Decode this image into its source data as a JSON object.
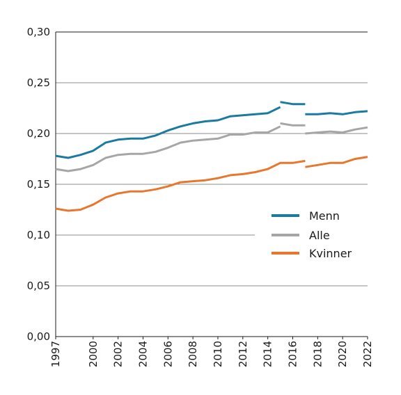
{
  "chart_data": {
    "type": "line",
    "title": "",
    "xlabel": "",
    "ylabel": "",
    "ylim": [
      0,
      0.3
    ],
    "xlim": [
      1997,
      2022
    ],
    "grid": "horizontal",
    "legend_position": "right",
    "y_ticks": [
      "0,00",
      "0,05",
      "0,10",
      "0,15",
      "0,20",
      "0,25",
      "0,30"
    ],
    "x_ticks": [
      "1997",
      "2000",
      "2002",
      "2004",
      "2006",
      "2008",
      "2010",
      "2012",
      "2014",
      "2016",
      "2018",
      "2020",
      "2022"
    ],
    "series": [
      {
        "name": "Menn",
        "color": "#1a7aa0",
        "segments": [
          [
            [
              1997,
              0.178
            ],
            [
              1998,
              0.176
            ],
            [
              1999,
              0.179
            ],
            [
              2000,
              0.183
            ],
            [
              2001,
              0.191
            ],
            [
              2002,
              0.194
            ],
            [
              2003,
              0.195
            ],
            [
              2004,
              0.195
            ],
            [
              2005,
              0.198
            ],
            [
              2006,
              0.203
            ],
            [
              2007,
              0.207
            ],
            [
              2008,
              0.21
            ],
            [
              2009,
              0.212
            ],
            [
              2010,
              0.213
            ],
            [
              2011,
              0.217
            ],
            [
              2012,
              0.218
            ],
            [
              2013,
              0.219
            ],
            [
              2014,
              0.22
            ],
            [
              2015,
              0.226
            ]
          ],
          [
            [
              2015,
              0.231
            ],
            [
              2016,
              0.229
            ],
            [
              2017,
              0.229
            ]
          ],
          [
            [
              2017,
              0.219
            ],
            [
              2018,
              0.219
            ],
            [
              2019,
              0.22
            ],
            [
              2020,
              0.219
            ],
            [
              2021,
              0.221
            ],
            [
              2022,
              0.222
            ]
          ]
        ]
      },
      {
        "name": "Alle",
        "color": "#a6a6a6",
        "segments": [
          [
            [
              1997,
              0.165
            ],
            [
              1998,
              0.163
            ],
            [
              1999,
              0.165
            ],
            [
              2000,
              0.169
            ],
            [
              2001,
              0.176
            ],
            [
              2002,
              0.179
            ],
            [
              2003,
              0.18
            ],
            [
              2004,
              0.18
            ],
            [
              2005,
              0.182
            ],
            [
              2006,
              0.186
            ],
            [
              2007,
              0.191
            ],
            [
              2008,
              0.193
            ],
            [
              2009,
              0.194
            ],
            [
              2010,
              0.195
            ],
            [
              2011,
              0.199
            ],
            [
              2012,
              0.199
            ],
            [
              2013,
              0.201
            ],
            [
              2014,
              0.201
            ],
            [
              2015,
              0.207
            ]
          ],
          [
            [
              2015,
              0.21
            ],
            [
              2016,
              0.208
            ],
            [
              2017,
              0.208
            ]
          ],
          [
            [
              2017,
              0.2
            ],
            [
              2018,
              0.201
            ],
            [
              2019,
              0.202
            ],
            [
              2020,
              0.201
            ],
            [
              2021,
              0.204
            ],
            [
              2022,
              0.206
            ]
          ]
        ]
      },
      {
        "name": "Kvinner",
        "color": "#e8762d",
        "segments": [
          [
            [
              1997,
              0.126
            ],
            [
              1998,
              0.124
            ],
            [
              1999,
              0.125
            ],
            [
              2000,
              0.13
            ],
            [
              2001,
              0.137
            ],
            [
              2002,
              0.141
            ],
            [
              2003,
              0.143
            ],
            [
              2004,
              0.143
            ],
            [
              2005,
              0.145
            ],
            [
              2006,
              0.148
            ],
            [
              2007,
              0.152
            ],
            [
              2008,
              0.153
            ],
            [
              2009,
              0.154
            ],
            [
              2010,
              0.156
            ],
            [
              2011,
              0.159
            ],
            [
              2012,
              0.16
            ],
            [
              2013,
              0.162
            ],
            [
              2014,
              0.165
            ],
            [
              2015,
              0.171
            ],
            [
              2016,
              0.171
            ],
            [
              2017,
              0.173
            ]
          ],
          [
            [
              2017,
              0.167
            ],
            [
              2018,
              0.169
            ],
            [
              2019,
              0.171
            ],
            [
              2020,
              0.171
            ],
            [
              2021,
              0.175
            ],
            [
              2022,
              0.177
            ]
          ]
        ]
      }
    ]
  }
}
